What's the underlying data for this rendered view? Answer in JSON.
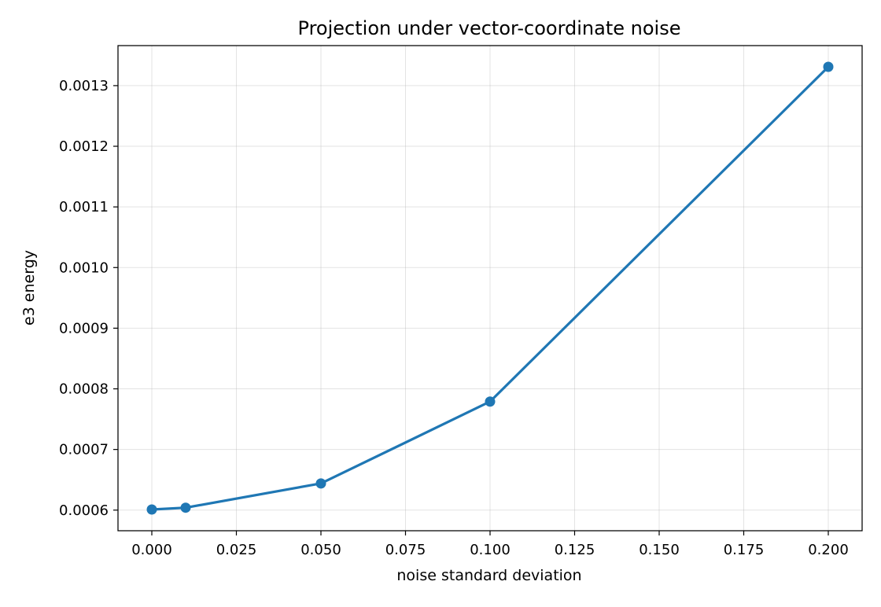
{
  "chart_data": {
    "type": "line",
    "title": "Projection under vector-coordinate noise",
    "xlabel": "noise standard deviation",
    "ylabel": "e3 energy",
    "x": [
      0.0,
      0.01,
      0.05,
      0.1,
      0.2
    ],
    "series": [
      {
        "values": [
          0.000601,
          0.000604,
          0.000644,
          0.000779,
          0.001331
        ],
        "color": "#1f77b4",
        "marker": "circle"
      }
    ],
    "xlim": [
      -0.01,
      0.21
    ],
    "ylim": [
      0.000566,
      0.001366
    ],
    "xticks": [
      0.0,
      0.025,
      0.05,
      0.075,
      0.1,
      0.125,
      0.15,
      0.175,
      0.2
    ],
    "xtick_labels": [
      "0.000",
      "0.025",
      "0.050",
      "0.075",
      "0.100",
      "0.125",
      "0.150",
      "0.175",
      "0.200"
    ],
    "yticks": [
      0.0006,
      0.0007,
      0.0008,
      0.0009,
      0.001,
      0.0011,
      0.0012,
      0.0013
    ],
    "ytick_labels": [
      "0.0006",
      "0.0007",
      "0.0008",
      "0.0009",
      "0.0010",
      "0.0011",
      "0.0012",
      "0.0013"
    ],
    "grid": true,
    "legend": "none"
  }
}
